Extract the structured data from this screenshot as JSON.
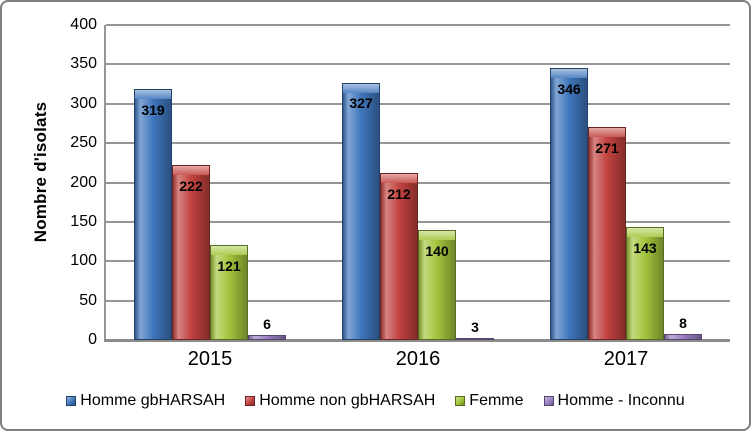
{
  "chart_data": {
    "type": "bar",
    "categories": [
      "2015",
      "2016",
      "2017"
    ],
    "series": [
      {
        "name": "Homme gbHARSAH",
        "color": "#3F76BC",
        "values": [
          319,
          327,
          346
        ]
      },
      {
        "name": "Homme non gbHARSAH",
        "color": "#C2423F",
        "values": [
          222,
          212,
          271
        ]
      },
      {
        "name": "Femme",
        "color": "#A3C53C",
        "values": [
          121,
          140,
          143
        ]
      },
      {
        "name": "Homme - Inconnu",
        "color": "#9C80C4",
        "values": [
          6,
          3,
          8
        ]
      }
    ],
    "title": "",
    "xlabel": "",
    "ylabel": "Nombre d'isolats",
    "ylim": [
      0,
      400
    ],
    "ytick_step": 50,
    "grid": true,
    "legend_position": "bottom",
    "bar_labels": true
  }
}
